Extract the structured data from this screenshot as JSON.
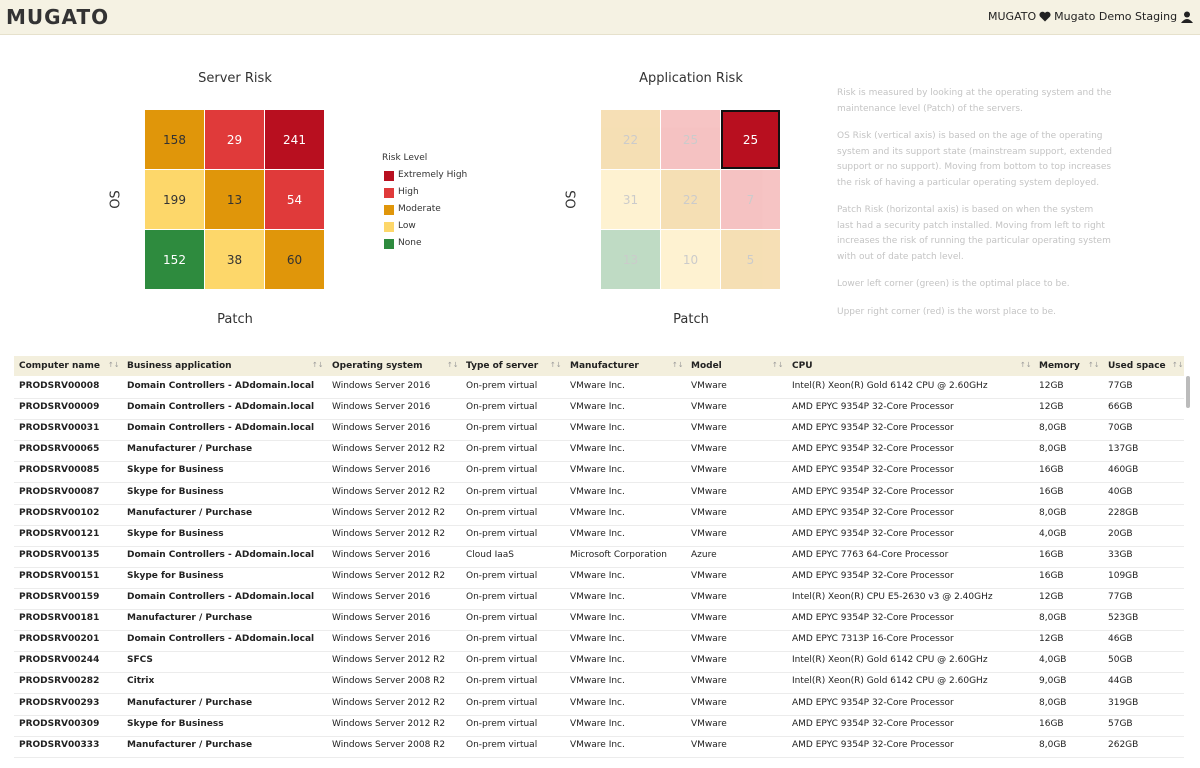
{
  "header": {
    "logo": "MUGATO",
    "org": "MUGATO",
    "workspace": "Mugato Demo Staging"
  },
  "heatmaps": [
    {
      "title": "Server Risk",
      "y_label": "OS",
      "x_label": "Patch",
      "faded": false,
      "cells": [
        [
          {
            "value": 158,
            "color": "#e0960a"
          },
          {
            "value": 29,
            "color": "#e03a3a"
          },
          {
            "value": 241,
            "color": "#b80f1f"
          }
        ],
        [
          {
            "value": 199,
            "color": "#fdd76a"
          },
          {
            "value": 13,
            "color": "#e0960a"
          },
          {
            "value": 54,
            "color": "#e03a3a"
          }
        ],
        [
          {
            "value": 152,
            "color": "#2e8b3e"
          },
          {
            "value": 38,
            "color": "#fdd76a"
          },
          {
            "value": 60,
            "color": "#e0960a"
          }
        ]
      ]
    },
    {
      "title": "Application Risk",
      "y_label": "OS",
      "x_label": "Patch",
      "faded": true,
      "cells": [
        [
          {
            "value": 22,
            "color": "#e0960a"
          },
          {
            "value": 25,
            "color": "#e03a3a"
          },
          {
            "value": 25,
            "color": "#b80f1f",
            "highlight": true
          }
        ],
        [
          {
            "value": 31,
            "color": "#fdd76a"
          },
          {
            "value": 22,
            "color": "#e0960a"
          },
          {
            "value": 7,
            "color": "#e03a3a"
          }
        ],
        [
          {
            "value": 13,
            "color": "#2e8b3e"
          },
          {
            "value": 10,
            "color": "#fdd76a"
          },
          {
            "value": 5,
            "color": "#e0960a"
          }
        ]
      ]
    }
  ],
  "legend": {
    "title": "Risk Level",
    "items": [
      {
        "label": "Extremely High",
        "color": "#b80f1f"
      },
      {
        "label": "High",
        "color": "#e03a3a"
      },
      {
        "label": "Moderate",
        "color": "#e0960a"
      },
      {
        "label": "Low",
        "color": "#fdd76a"
      },
      {
        "label": "None",
        "color": "#2e8b3e"
      }
    ]
  },
  "description": [
    "Risk is measured by looking at the operating system and the maintenance level (Patch) of the servers.",
    "OS Risk (vertical axis) is based on the age of the operating system and its support state (mainstream support, extended support or no support). Moving from bottom to top increases the risk of having a particular operating system deployed.",
    "Patch Risk (horizontal axis) is based on when the system last had a security patch installed. Moving from left to right increases the risk of running the particular operating system with out of date patch level.",
    "Lower left corner (green) is the optimal place to be.",
    "Upper right corner (red) is the worst place to be."
  ],
  "table": {
    "columns": [
      "Computer name",
      "Business application",
      "Operating system",
      "Type of server",
      "Manufacturer",
      "Model",
      "CPU",
      "Memory",
      "Used space"
    ],
    "rows": [
      [
        "PRODSRV00008",
        "Domain Controllers - ADdomain.local",
        "Windows Server 2016",
        "On-prem virtual",
        "VMware Inc.",
        "VMware",
        "Intel(R) Xeon(R) Gold 6142 CPU @ 2.60GHz",
        "12GB",
        "77GB"
      ],
      [
        "PRODSRV00009",
        "Domain Controllers - ADdomain.local",
        "Windows Server 2016",
        "On-prem virtual",
        "VMware Inc.",
        "VMware",
        "AMD EPYC 9354P 32-Core Processor",
        "12GB",
        "66GB"
      ],
      [
        "PRODSRV00031",
        "Domain Controllers - ADdomain.local",
        "Windows Server 2016",
        "On-prem virtual",
        "VMware Inc.",
        "VMware",
        "AMD EPYC 9354P 32-Core Processor",
        "8,0GB",
        "70GB"
      ],
      [
        "PRODSRV00065",
        "Manufacturer / Purchase",
        "Windows Server 2012 R2",
        "On-prem virtual",
        "VMware Inc.",
        "VMware",
        "AMD EPYC 9354P 32-Core Processor",
        "8,0GB",
        "137GB"
      ],
      [
        "PRODSRV00085",
        "Skype for Business",
        "Windows Server 2016",
        "On-prem virtual",
        "VMware Inc.",
        "VMware",
        "AMD EPYC 9354P 32-Core Processor",
        "16GB",
        "460GB"
      ],
      [
        "PRODSRV00087",
        "Skype for Business",
        "Windows Server 2012 R2",
        "On-prem virtual",
        "VMware Inc.",
        "VMware",
        "AMD EPYC 9354P 32-Core Processor",
        "16GB",
        "40GB"
      ],
      [
        "PRODSRV00102",
        "Manufacturer / Purchase",
        "Windows Server 2012 R2",
        "On-prem virtual",
        "VMware Inc.",
        "VMware",
        "AMD EPYC 9354P 32-Core Processor",
        "8,0GB",
        "228GB"
      ],
      [
        "PRODSRV00121",
        "Skype for Business",
        "Windows Server 2012 R2",
        "On-prem virtual",
        "VMware Inc.",
        "VMware",
        "AMD EPYC 9354P 32-Core Processor",
        "4,0GB",
        "20GB"
      ],
      [
        "PRODSRV00135",
        "Domain Controllers - ADdomain.local",
        "Windows Server 2016",
        "Cloud IaaS",
        "Microsoft Corporation",
        "Azure",
        "AMD EPYC 7763 64-Core Processor",
        "16GB",
        "33GB"
      ],
      [
        "PRODSRV00151",
        "Skype for Business",
        "Windows Server 2012 R2",
        "On-prem virtual",
        "VMware Inc.",
        "VMware",
        "AMD EPYC 9354P 32-Core Processor",
        "16GB",
        "109GB"
      ],
      [
        "PRODSRV00159",
        "Domain Controllers - ADdomain.local",
        "Windows Server 2016",
        "On-prem virtual",
        "VMware Inc.",
        "VMware",
        "Intel(R) Xeon(R) CPU E5-2630 v3 @ 2.40GHz",
        "12GB",
        "77GB"
      ],
      [
        "PRODSRV00181",
        "Manufacturer / Purchase",
        "Windows Server 2016",
        "On-prem virtual",
        "VMware Inc.",
        "VMware",
        "AMD EPYC 9354P 32-Core Processor",
        "8,0GB",
        "523GB"
      ],
      [
        "PRODSRV00201",
        "Domain Controllers - ADdomain.local",
        "Windows Server 2016",
        "On-prem virtual",
        "VMware Inc.",
        "VMware",
        "AMD EPYC 7313P 16-Core Processor",
        "12GB",
        "46GB"
      ],
      [
        "PRODSRV00244",
        "SFCS",
        "Windows Server 2012 R2",
        "On-prem virtual",
        "VMware Inc.",
        "VMware",
        "Intel(R) Xeon(R) Gold 6142 CPU @ 2.60GHz",
        "4,0GB",
        "50GB"
      ],
      [
        "PRODSRV00282",
        "Citrix",
        "Windows Server 2008 R2",
        "On-prem virtual",
        "VMware Inc.",
        "VMware",
        "Intel(R) Xeon(R) Gold 6142 CPU @ 2.60GHz",
        "9,0GB",
        "44GB"
      ],
      [
        "PRODSRV00293",
        "Manufacturer / Purchase",
        "Windows Server 2012 R2",
        "On-prem virtual",
        "VMware Inc.",
        "VMware",
        "AMD EPYC 9354P 32-Core Processor",
        "8,0GB",
        "319GB"
      ],
      [
        "PRODSRV00309",
        "Skype for Business",
        "Windows Server 2012 R2",
        "On-prem virtual",
        "VMware Inc.",
        "VMware",
        "AMD EPYC 9354P 32-Core Processor",
        "16GB",
        "57GB"
      ],
      [
        "PRODSRV00333",
        "Manufacturer / Purchase",
        "Windows Server 2008 R2",
        "On-prem virtual",
        "VMware Inc.",
        "VMware",
        "AMD EPYC 9354P 32-Core Processor",
        "8,0GB",
        "262GB"
      ]
    ]
  }
}
